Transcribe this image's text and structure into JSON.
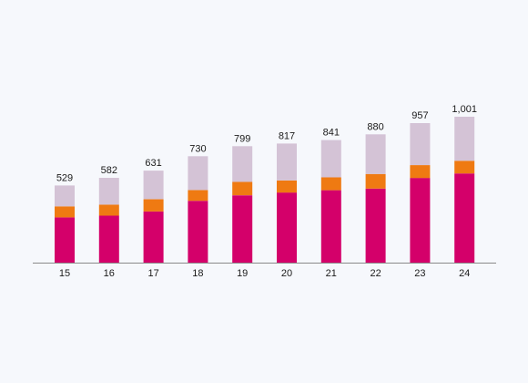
{
  "chart_data": {
    "type": "bar",
    "stacked": true,
    "title": "",
    "xlabel": "",
    "ylabel": "",
    "categories": [
      "15",
      "16",
      "17",
      "18",
      "19",
      "20",
      "21",
      "22",
      "23",
      "24"
    ],
    "totals": [
      "529",
      "582",
      "631",
      "730",
      "799",
      "817",
      "841",
      "880",
      "957",
      "1,001"
    ],
    "series": [
      {
        "color": "#d4006a",
        "values": [
          310,
          322,
          351,
          424,
          462,
          481,
          497,
          508,
          581,
          612
        ]
      },
      {
        "color": "#ef7a12",
        "values": [
          76,
          76,
          84,
          74,
          92,
          83,
          88,
          100,
          88,
          87
        ]
      },
      {
        "color": "#d4c3d6",
        "values": [
          143,
          184,
          196,
          232,
          245,
          253,
          256,
          272,
          288,
          302
        ]
      }
    ],
    "ylim": [
      0,
      1001
    ],
    "grid": false,
    "legend": "none"
  }
}
